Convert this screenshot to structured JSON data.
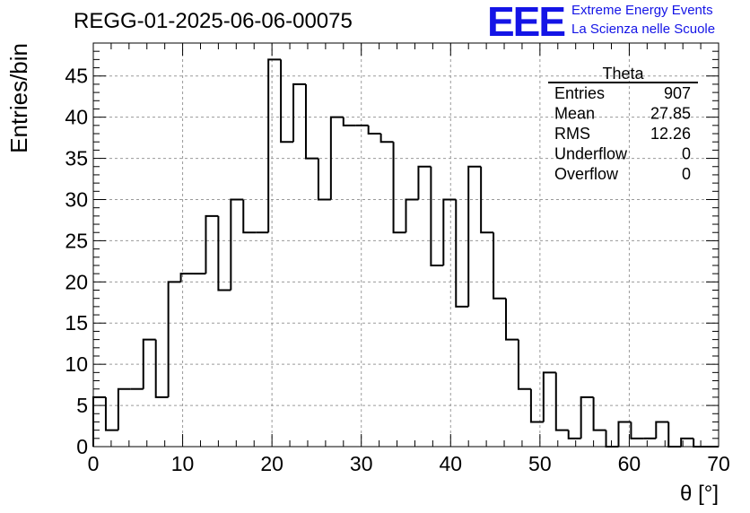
{
  "chart_data": {
    "type": "bar",
    "title": "REGG-01-2025-06-06-00075",
    "xlabel": "θ [°]",
    "ylabel": "Entries/bin",
    "xlim": [
      0,
      70
    ],
    "ylim": [
      0,
      49
    ],
    "grid": true,
    "bin_width": 1.4,
    "x_ticks": [
      "0",
      "10",
      "20",
      "30",
      "40",
      "50",
      "60",
      "70"
    ],
    "y_ticks": [
      "0",
      "5",
      "10",
      "15",
      "20",
      "25",
      "30",
      "35",
      "40",
      "45"
    ],
    "bin_edges": [
      0,
      1.4,
      2.8,
      4.2,
      5.6,
      7.0,
      8.4,
      9.8,
      11.2,
      12.6,
      14.0,
      15.4,
      16.8,
      18.2,
      19.6,
      21.0,
      22.4,
      23.8,
      25.2,
      26.6,
      28.0,
      29.4,
      30.8,
      32.2,
      33.6,
      35.0,
      36.4,
      37.8,
      39.2,
      40.6,
      42.0,
      43.4,
      44.8,
      46.2,
      47.6,
      49.0,
      50.4,
      51.8,
      53.2,
      54.6,
      56.0,
      57.4,
      58.8,
      60.2,
      61.6,
      63.0,
      64.4,
      65.8,
      67.2,
      68.6,
      70.0
    ],
    "values": [
      6,
      2,
      7,
      7,
      13,
      6,
      20,
      21,
      21,
      28,
      19,
      30,
      26,
      26,
      47,
      37,
      44,
      35,
      30,
      40,
      39,
      39,
      38,
      37,
      26,
      30,
      34,
      22,
      30,
      17,
      34,
      26,
      18,
      13,
      7,
      3,
      9,
      2,
      1,
      6,
      2,
      0,
      3,
      1,
      1,
      3,
      0,
      1,
      0,
      0
    ],
    "stats_box": {
      "name": "Theta",
      "rows": [
        {
          "label": "Entries",
          "value": "907"
        },
        {
          "label": "Mean",
          "value": "27.85"
        },
        {
          "label": "RMS",
          "value": "12.26"
        },
        {
          "label": "Underflow",
          "value": "0"
        },
        {
          "label": "Overflow",
          "value": "0"
        }
      ]
    }
  },
  "logo": {
    "mark": "EEE",
    "line1": "Extreme Energy Events",
    "line2": "La Scienza nelle Scuole",
    "color": "#1414e6"
  }
}
